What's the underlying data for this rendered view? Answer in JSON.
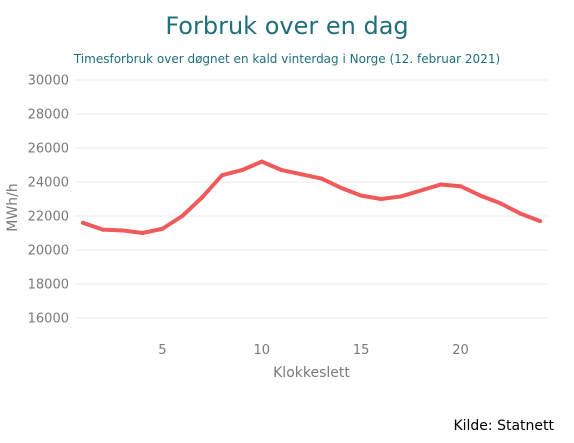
{
  "chart_data": {
    "type": "line",
    "title": "Forbruk over en dag",
    "subtitle": "Timesforbruk over døgnet en kald vinterdag i Norge (12. februar 2021)",
    "xlabel": "Klokkeslett",
    "ylabel": "MWh/h",
    "x": [
      1,
      2,
      3,
      4,
      5,
      6,
      7,
      8,
      9,
      10,
      11,
      12,
      13,
      14,
      15,
      16,
      17,
      18,
      19,
      20,
      21,
      22,
      23,
      24
    ],
    "series": [
      {
        "values": [
          21600,
          21200,
          21150,
          21000,
          21250,
          22000,
          23100,
          24400,
          24700,
          25200,
          24700,
          24450,
          24200,
          23650,
          23200,
          23000,
          23150,
          23500,
          23850,
          23750,
          23200,
          22750,
          22150,
          21700
        ],
        "color": "#f05a5a"
      }
    ],
    "xlim": [
      0.6,
      24.4
    ],
    "ylim": [
      15000,
      30000
    ],
    "xticks": [
      5,
      10,
      15,
      20
    ],
    "yticks": [
      16000,
      18000,
      20000,
      22000,
      24000,
      26000,
      28000,
      30000
    ],
    "grid": true,
    "source": "Kilde: Statnett"
  }
}
